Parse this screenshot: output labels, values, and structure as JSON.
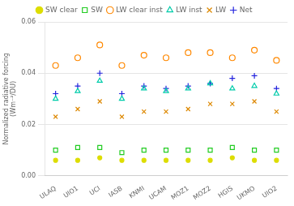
{
  "chart_data": {
    "type": "scatter",
    "categories": [
      "ULAQ",
      "UIO1",
      "UCI",
      "IASB",
      "KNMI",
      "UCAM",
      "MOZ1",
      "MOZ2",
      "HGIS",
      "UKMO",
      "UIO2"
    ],
    "series": [
      {
        "name": "SW clear",
        "color": "#dddd00",
        "marker": "dot",
        "values": [
          0.006,
          0.006,
          0.007,
          0.006,
          0.006,
          0.006,
          0.006,
          0.006,
          0.007,
          0.006,
          0.006
        ]
      },
      {
        "name": "SW",
        "color": "#22cc22",
        "marker": "square",
        "values": [
          0.01,
          0.011,
          0.011,
          0.009,
          0.01,
          0.01,
          0.01,
          0.01,
          0.011,
          0.01,
          0.01
        ]
      },
      {
        "name": "LW clear inst",
        "color": "#ff8800",
        "marker": "circle",
        "values": [
          0.043,
          0.046,
          0.051,
          0.043,
          0.047,
          0.046,
          0.048,
          0.048,
          0.046,
          0.049,
          0.045
        ]
      },
      {
        "name": "LW inst",
        "color": "#00ccaa",
        "marker": "triangle",
        "values": [
          0.03,
          0.033,
          0.037,
          0.03,
          0.034,
          0.033,
          0.034,
          0.036,
          0.034,
          0.035,
          0.032
        ]
      },
      {
        "name": "LW",
        "color": "#dd8800",
        "marker": "x",
        "values": [
          0.023,
          0.026,
          0.029,
          0.023,
          0.025,
          0.025,
          0.026,
          0.028,
          0.028,
          0.029,
          0.025
        ]
      },
      {
        "name": "Net",
        "color": "#2222dd",
        "marker": "plus",
        "values": [
          0.032,
          0.035,
          0.04,
          0.032,
          0.035,
          0.034,
          0.035,
          0.036,
          0.038,
          0.039,
          0.034
        ]
      }
    ],
    "ylabel": "Normalized radiative forcing\n(Wm⁻²/DU)",
    "ylim": [
      0.0,
      0.06
    ],
    "yticks": [
      {
        "value": 0,
        "label": "0.00"
      },
      0.02,
      0.04,
      0.06
    ],
    "grid": "y",
    "legend": "top"
  }
}
